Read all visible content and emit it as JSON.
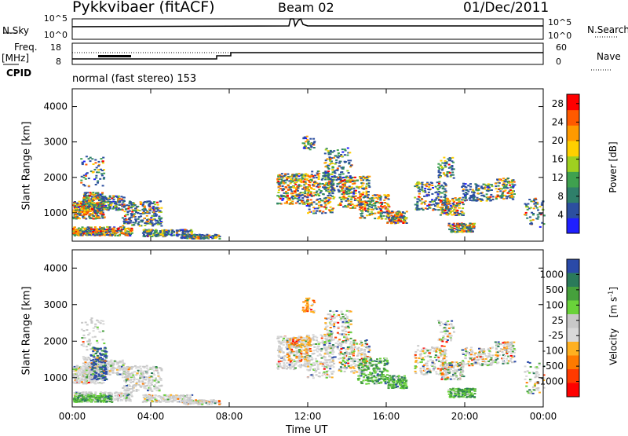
{
  "header": {
    "radar": "Pykkvibaer (fitACF)",
    "beam": "Beam 02",
    "date": "01/Dec/2011"
  },
  "top_panel": {
    "left_label": "N.Sky",
    "right_label": "N.Search",
    "left_ticks": [
      "10^5",
      "10^0"
    ],
    "right_ticks": [
      "10^5",
      "10^0"
    ]
  },
  "freq_panel": {
    "left_label_1": "Freq.",
    "left_label_2": "[MHz]",
    "cpid_label": "CPID",
    "right_label": "Nave",
    "left_ticks": [
      "18",
      "8"
    ],
    "right_ticks": [
      "60",
      "0"
    ],
    "cpid_text": "normal (fast stereo) 153"
  },
  "colors": {
    "power_scale": [
      "#1f1fff",
      "#2c4fa0",
      "#2f7f6a",
      "#3fa14f",
      "#9fd020",
      "#ffd000",
      "#ff9a00",
      "#ff5a00",
      "#ff0000"
    ],
    "velocity_scale": [
      "#2a4aa8",
      "#2a7a5a",
      "#46a03c",
      "#6ad23a",
      "#c8c8c8",
      "#d8d8d8",
      "#ffb020",
      "#ff7a00",
      "#ff3a00",
      "#ff0000"
    ]
  },
  "chart_data": [
    {
      "type": "heatmap",
      "panel": "power",
      "ylabel": "Slant Range [km]",
      "xlabel": "Time UT",
      "x_ticks": [
        "00:00",
        "04:00",
        "08:00",
        "12:00",
        "16:00",
        "20:00",
        "00:00"
      ],
      "y_ticks": [
        "1000",
        "2000",
        "3000",
        "4000"
      ],
      "ylim": [
        200,
        4500
      ],
      "colorbar_label": "Power [dB]",
      "colorbar_ticks": [
        "4",
        "8",
        "12",
        "16",
        "20",
        "24",
        "28"
      ],
      "colorbar_range": [
        0,
        30
      ]
    },
    {
      "type": "heatmap",
      "panel": "velocity",
      "ylabel": "Slant Range [km]",
      "xlabel": "Time UT",
      "x_ticks": [
        "00:00",
        "04:00",
        "08:00",
        "12:00",
        "16:00",
        "20:00",
        "00:00"
      ],
      "y_ticks": [
        "1000",
        "2000",
        "3000",
        "4000"
      ],
      "ylim": [
        200,
        4500
      ],
      "colorbar_label_main": "Velocity",
      "colorbar_label_unit": "[m s",
      "colorbar_label_exp": "-1",
      "colorbar_label_close": "]",
      "colorbar_ticks": [
        "1000",
        "500",
        "100",
        "25",
        "-25",
        "-100",
        "-500",
        "-1000"
      ]
    }
  ]
}
